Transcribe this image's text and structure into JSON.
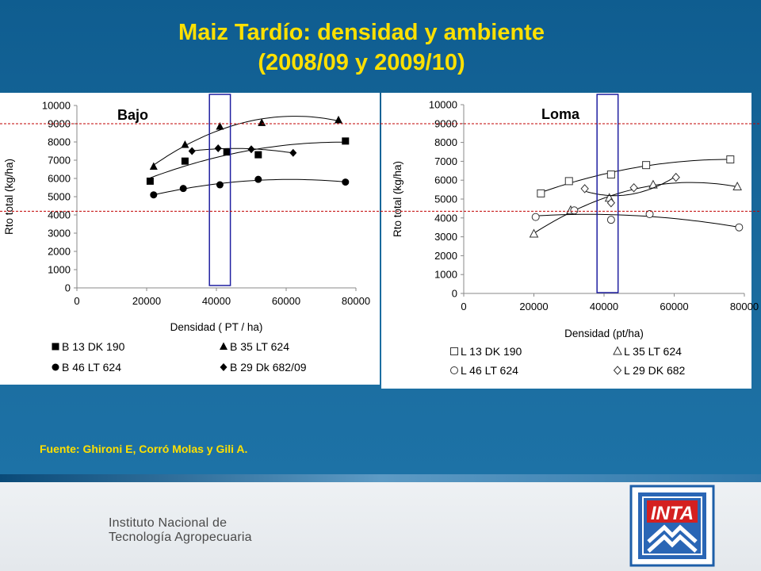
{
  "title": {
    "line1": "Maiz Tardío: densidad y ambiente",
    "line2": "(2008/09 y 2009/10)"
  },
  "source": "Fuente: Ghironi E, Corró Molas y Gili A.",
  "institution": {
    "line1": "Instituto Nacional de",
    "line2": "Tecnología Agropecuaria",
    "logo_text": "INTA"
  },
  "colors": {
    "title": "#ffe000",
    "background": "#1a6a9c",
    "highlight_box": "#1f1fa0",
    "reference_line": "#c00000"
  },
  "chart_data": [
    {
      "type": "scatter",
      "title": "Bajo",
      "xlabel": "Densidad ( PT / ha)",
      "ylabel": "Rto total (kg/ha)",
      "xlim": [
        0,
        80000
      ],
      "ylim": [
        0,
        10000
      ],
      "xticks": [
        0,
        20000,
        40000,
        60000,
        80000
      ],
      "yticks": [
        0,
        1000,
        2000,
        3000,
        4000,
        5000,
        6000,
        7000,
        8000,
        9000,
        10000
      ],
      "highlight_x_range": [
        38000,
        44000
      ],
      "legend_position": "bottom",
      "series": [
        {
          "name": "B 13 DK 190",
          "marker": "square",
          "fill": "filled",
          "x": [
            21000,
            31000,
            43000,
            52000,
            77000
          ],
          "y": [
            5850,
            6950,
            7450,
            7300,
            8050
          ]
        },
        {
          "name": "B 35 LT 624",
          "marker": "triangle",
          "fill": "filled",
          "x": [
            22000,
            31000,
            41000,
            53000,
            75000
          ],
          "y": [
            6650,
            7850,
            8850,
            9050,
            9200
          ]
        },
        {
          "name": "B 46 LT 624",
          "marker": "circle",
          "fill": "filled",
          "x": [
            22000,
            30500,
            41000,
            52000,
            77000
          ],
          "y": [
            5100,
            5450,
            5650,
            5950,
            5800
          ]
        },
        {
          "name": "B 29 Dk 682/09",
          "marker": "diamond",
          "fill": "filled",
          "x": [
            33000,
            40500,
            50000,
            62000
          ],
          "y": [
            7500,
            7650,
            7600,
            7400
          ]
        }
      ]
    },
    {
      "type": "scatter",
      "title": "Loma",
      "xlabel": "Densidad (pt/ha)",
      "ylabel": "Rto total (kg/ha)",
      "xlim": [
        0,
        80000
      ],
      "ylim": [
        0,
        10000
      ],
      "xticks": [
        0,
        20000,
        40000,
        60000,
        80000
      ],
      "yticks": [
        0,
        1000,
        2000,
        3000,
        4000,
        5000,
        6000,
        7000,
        8000,
        9000,
        10000
      ],
      "highlight_x_range": [
        38000,
        44000
      ],
      "legend_position": "bottom",
      "series": [
        {
          "name": "L 13 DK 190",
          "marker": "square",
          "fill": "open",
          "x": [
            22000,
            30000,
            42000,
            52000,
            76000
          ],
          "y": [
            5300,
            5950,
            6300,
            6800,
            7100
          ]
        },
        {
          "name": "L 35 LT 624",
          "marker": "triangle",
          "fill": "open",
          "x": [
            20000,
            30500,
            41500,
            54000,
            78000
          ],
          "y": [
            3150,
            4400,
            5050,
            5750,
            5650
          ]
        },
        {
          "name": "L 46 LT 624",
          "marker": "circle",
          "fill": "open",
          "x": [
            20500,
            31500,
            42000,
            53000,
            78500
          ],
          "y": [
            4050,
            4400,
            3900,
            4200,
            3500
          ]
        },
        {
          "name": "L 29 DK 682",
          "marker": "diamond",
          "fill": "open",
          "x": [
            34500,
            42000,
            48500,
            60500
          ],
          "y": [
            5550,
            4800,
            5600,
            6150
          ]
        }
      ]
    }
  ]
}
